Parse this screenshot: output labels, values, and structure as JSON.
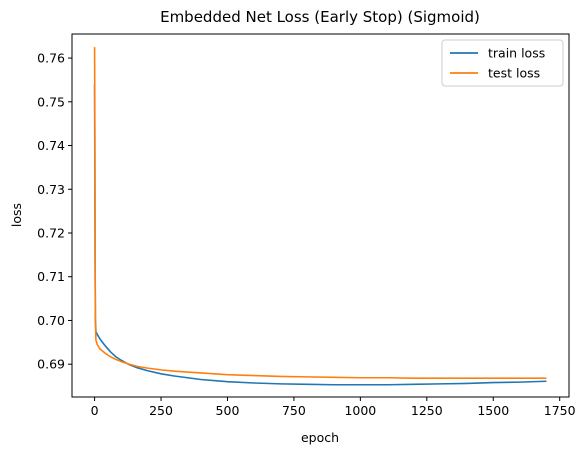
{
  "chart_data": {
    "type": "line",
    "title": "Embedded Net Loss (Early Stop) (Sigmoid)",
    "xlabel": "epoch",
    "ylabel": "loss",
    "xlim": [
      -85,
      1785
    ],
    "ylim": [
      0.6825,
      0.7655
    ],
    "xticks": [
      0,
      250,
      500,
      750,
      1000,
      1250,
      1500,
      1750
    ],
    "xtick_labels": [
      "0",
      "250",
      "500",
      "750",
      "1000",
      "1250",
      "1500",
      "1750"
    ],
    "yticks": [
      0.69,
      0.7,
      0.71,
      0.72,
      0.73,
      0.74,
      0.75,
      0.76
    ],
    "ytick_labels": [
      "0.69",
      "0.70",
      "0.71",
      "0.72",
      "0.73",
      "0.74",
      "0.75",
      "0.76"
    ],
    "grid": false,
    "legend_position": "top-right",
    "series": [
      {
        "name": "train loss",
        "color": "#1f77b4",
        "x": [
          0,
          1,
          2,
          3,
          5,
          10,
          20,
          40,
          60,
          80,
          100,
          130,
          160,
          200,
          250,
          300,
          400,
          500,
          600,
          700,
          800,
          900,
          1000,
          1100,
          1200,
          1300,
          1400,
          1500,
          1600,
          1700
        ],
        "y": [
          0.754,
          0.735,
          0.712,
          0.7,
          0.6975,
          0.6968,
          0.6958,
          0.6942,
          0.6928,
          0.6917,
          0.6909,
          0.6899,
          0.6892,
          0.6885,
          0.6878,
          0.6873,
          0.6865,
          0.686,
          0.6857,
          0.6855,
          0.6854,
          0.6853,
          0.6853,
          0.6853,
          0.6854,
          0.6855,
          0.6856,
          0.6858,
          0.6859,
          0.6861
        ]
      },
      {
        "name": "test loss",
        "color": "#ff7f0e",
        "x": [
          0,
          1,
          2,
          3,
          5,
          10,
          20,
          40,
          60,
          80,
          100,
          130,
          160,
          200,
          250,
          300,
          400,
          500,
          600,
          700,
          800,
          900,
          1000,
          1100,
          1200,
          1300,
          1400,
          1500,
          1600,
          1700
        ],
        "y": [
          0.7625,
          0.745,
          0.715,
          0.7,
          0.6955,
          0.6945,
          0.6935,
          0.6925,
          0.6917,
          0.6911,
          0.6906,
          0.69,
          0.6895,
          0.6891,
          0.6887,
          0.6884,
          0.688,
          0.6876,
          0.6874,
          0.6872,
          0.6871,
          0.687,
          0.6869,
          0.6869,
          0.6868,
          0.6868,
          0.6868,
          0.6868,
          0.6868,
          0.6868
        ]
      }
    ]
  }
}
